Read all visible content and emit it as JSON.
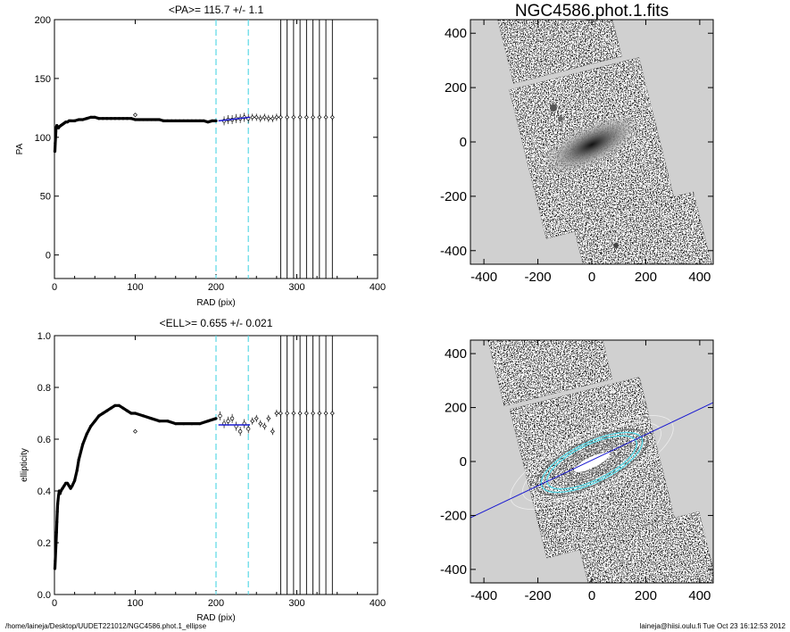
{
  "footer": {
    "path": "/home/laineja/Desktop/UUDET221012/NGC4586.phot.1_ellipse",
    "user_time": "laineja@hiisi.oulu.fi  Tue Oct 23 16:12:53 2012"
  },
  "colors": {
    "cyan_lines": "#5ad8e6",
    "fit_blue": "#1a1ad0",
    "sky_gray": "#d0d0d0"
  },
  "chart_data": [
    {
      "id": "pa",
      "type": "scatter",
      "title": "<PA>= 115.7 +/-   1.1",
      "xlabel": "RAD (pix)",
      "ylabel": "PA",
      "xlim": [
        0,
        400
      ],
      "ylim": [
        -20,
        200
      ],
      "xticks": [
        "0",
        "100",
        "200",
        "300",
        "400"
      ],
      "yticks": [
        "0",
        "50",
        "100",
        "150",
        "200"
      ],
      "ytick_values": [
        0,
        50,
        100,
        150,
        200
      ],
      "vlines_cyan": [
        200,
        240
      ],
      "vlines_black": [
        280,
        288,
        296,
        304,
        312,
        320,
        328,
        336,
        344
      ],
      "series": [
        {
          "x": [
            0.5,
            1,
            1.5,
            2,
            3,
            4,
            5,
            6,
            8,
            10,
            12,
            14,
            16,
            18,
            20,
            25,
            30,
            35,
            40,
            45,
            50,
            55,
            60,
            65,
            70,
            75,
            80,
            85,
            90,
            95,
            100,
            105,
            110,
            115,
            120,
            125,
            130,
            135,
            140,
            145,
            150,
            155,
            160,
            165,
            170,
            175,
            180,
            185,
            190,
            195,
            200
          ],
          "y": [
            88,
            95,
            102,
            108,
            110,
            109,
            108,
            109,
            110,
            111,
            112,
            113,
            113,
            114,
            114,
            114,
            115,
            115,
            116,
            117,
            117,
            116,
            116,
            116,
            116,
            116,
            116,
            116,
            116,
            116,
            115,
            115,
            115,
            115,
            115,
            115,
            115,
            114,
            114,
            114,
            114,
            114,
            114,
            114,
            114,
            114,
            114,
            114,
            113,
            114,
            114
          ]
        },
        {
          "x": [
            210,
            215,
            220,
            225,
            230,
            235,
            240
          ],
          "y": [
            114,
            115,
            115,
            116,
            116,
            117,
            116
          ]
        },
        {
          "x": [
            245,
            250,
            255,
            260,
            265,
            270,
            275,
            280,
            288,
            296,
            304,
            312,
            320,
            328,
            336,
            344
          ],
          "y": [
            117,
            117,
            116,
            117,
            116,
            116,
            117,
            117,
            117,
            117,
            117,
            117,
            117,
            117,
            117,
            117
          ]
        }
      ],
      "outliers": [
        {
          "x": 100,
          "y": 119
        }
      ],
      "fit_segment": {
        "x": [
          203,
          242
        ],
        "y": [
          114,
          117
        ]
      }
    },
    {
      "id": "ell",
      "type": "scatter",
      "title": "<ELL>= 0.655 +/-  0.021",
      "xlabel": "RAD (pix)",
      "ylabel": "ellipticity",
      "xlim": [
        0,
        400
      ],
      "ylim": [
        0.0,
        1.0
      ],
      "xticks": [
        "0",
        "100",
        "200",
        "300",
        "400"
      ],
      "yticks": [
        "0.0",
        "0.2",
        "0.4",
        "0.6",
        "0.8",
        "1.0"
      ],
      "ytick_values": [
        0,
        0.2,
        0.4,
        0.6,
        0.8,
        1.0
      ],
      "vlines_cyan": [
        200,
        240
      ],
      "vlines_black": [
        280,
        288,
        296,
        304,
        312,
        320,
        328,
        336,
        344
      ],
      "series": [
        {
          "x": [
            0.5,
            1,
            1.5,
            2,
            2.5,
            3,
            3.5,
            4,
            5,
            6,
            7,
            8,
            10,
            12,
            14,
            16,
            18,
            20,
            22,
            25,
            28,
            30,
            35,
            40,
            45,
            50,
            55,
            60,
            65,
            70,
            75,
            80,
            85,
            90,
            95,
            100,
            110,
            120,
            130,
            140,
            150,
            160,
            170,
            180,
            190,
            200
          ],
          "y": [
            0.1,
            0.13,
            0.17,
            0.2,
            0.24,
            0.28,
            0.32,
            0.35,
            0.38,
            0.4,
            0.39,
            0.4,
            0.41,
            0.42,
            0.43,
            0.43,
            0.42,
            0.41,
            0.42,
            0.44,
            0.48,
            0.52,
            0.58,
            0.62,
            0.65,
            0.67,
            0.69,
            0.7,
            0.71,
            0.72,
            0.73,
            0.73,
            0.72,
            0.71,
            0.7,
            0.7,
            0.69,
            0.68,
            0.67,
            0.67,
            0.66,
            0.66,
            0.66,
            0.66,
            0.67,
            0.68
          ]
        },
        {
          "x": [
            205,
            210,
            215,
            220,
            225,
            230,
            235,
            240
          ],
          "y": [
            0.69,
            0.66,
            0.67,
            0.68,
            0.65,
            0.63,
            0.66,
            0.64
          ]
        },
        {
          "x": [
            245,
            250,
            255,
            260,
            265,
            270,
            275,
            280,
            288,
            296,
            304,
            312,
            320,
            328,
            336,
            344
          ],
          "y": [
            0.67,
            0.68,
            0.66,
            0.65,
            0.68,
            0.63,
            0.7,
            0.7,
            0.7,
            0.7,
            0.7,
            0.7,
            0.7,
            0.7,
            0.7,
            0.7
          ]
        }
      ],
      "outliers": [
        {
          "x": 100,
          "y": 0.63
        }
      ],
      "fit_segment": {
        "x": [
          203,
          242
        ],
        "y": [
          0.655,
          0.655
        ]
      }
    },
    {
      "id": "img1",
      "type": "heatmap",
      "title": "NGC4586.phot.1.fits",
      "xlim": [
        -450,
        450
      ],
      "ylim": [
        -450,
        450
      ],
      "xticks": [
        "-400",
        "-200",
        "0",
        "200",
        "400"
      ],
      "yticks": [
        "-400",
        "-200",
        "0",
        "200",
        "400"
      ],
      "tick_values": [
        -400,
        -200,
        0,
        200,
        400
      ]
    },
    {
      "id": "img2",
      "type": "heatmap",
      "title": "",
      "xlim": [
        -450,
        450
      ],
      "ylim": [
        -450,
        450
      ],
      "xticks": [
        "-400",
        "-200",
        "0",
        "200",
        "400"
      ],
      "yticks": [
        "-400",
        "-200",
        "0",
        "200",
        "400"
      ],
      "tick_values": [
        -400,
        -200,
        0,
        200,
        400
      ],
      "major_axis_pa_deg": 115.7,
      "ellipticity": 0.655
    }
  ]
}
